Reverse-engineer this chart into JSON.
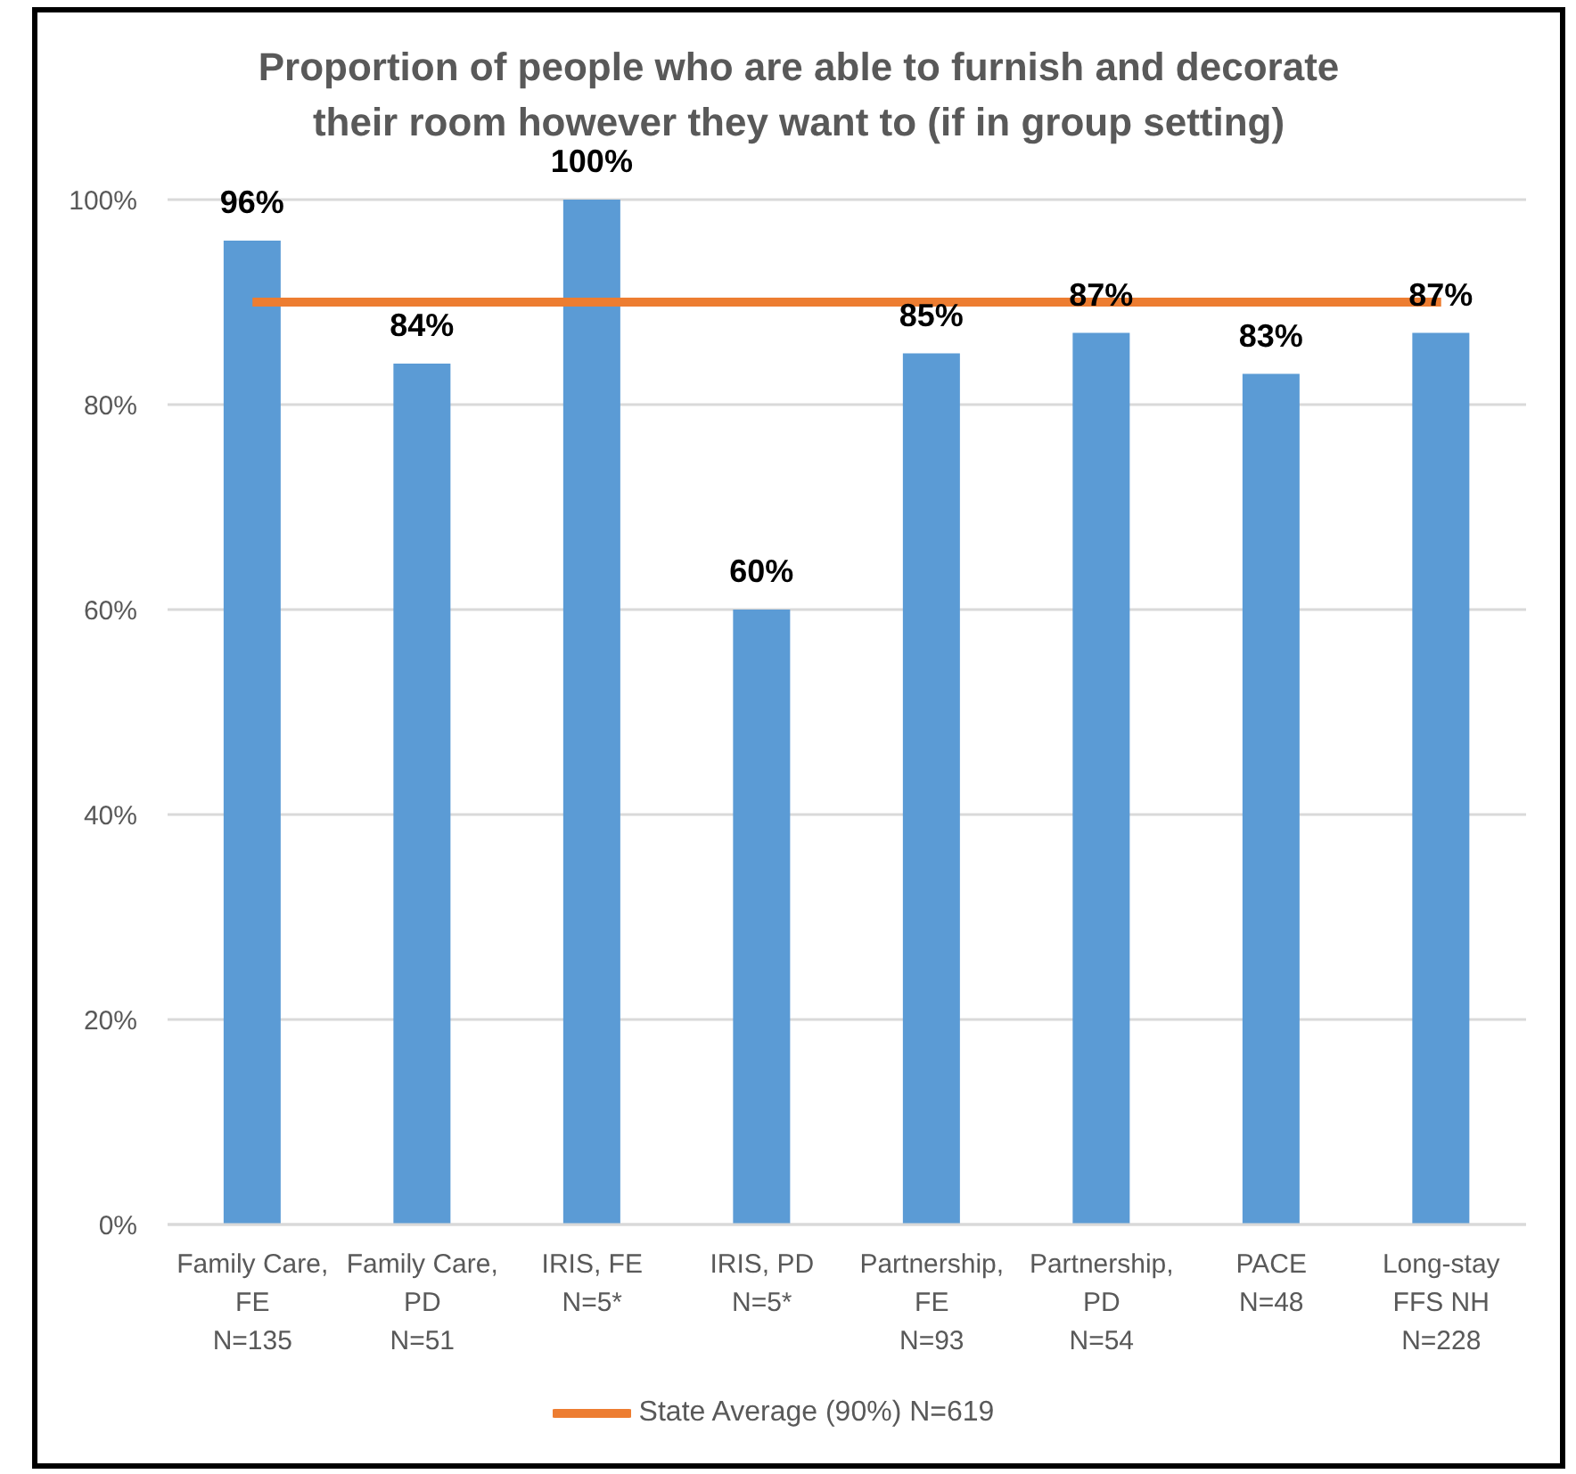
{
  "chart_data": {
    "type": "bar",
    "title": "Proportion of people who are able to furnish and decorate their room however they want to (if in group setting)",
    "categories": [
      "Family Care,\nFE\nN=135",
      "Family Care,\nPD\nN=51",
      "IRIS, FE\nN=5*",
      "IRIS, PD\nN=5*",
      "Partnership,\nFE\nN=93",
      "Partnership,\nPD\nN=54",
      "PACE\nN=48",
      "Long-stay\nFFS NH\nN=228"
    ],
    "series": [
      {
        "color": "#5b9bd5",
        "values": [
          96,
          84,
          100,
          60,
          85,
          87,
          83,
          87
        ],
        "value_labels": [
          "96%",
          "84%",
          "100%",
          "60%",
          "85%",
          "87%",
          "83%",
          "87%"
        ]
      },
      {
        "type": "line",
        "name": "State Average (90%) N=619",
        "color": "#ed7d31",
        "values": [
          90,
          90,
          90,
          90,
          90,
          90,
          90,
          90
        ],
        "marker": "none",
        "line_style": "solid"
      }
    ],
    "ylim": [
      0,
      100
    ],
    "yticks": [
      {
        "value": 0,
        "label": "0%"
      },
      {
        "value": 20,
        "label": "20%"
      },
      {
        "value": 40,
        "label": "40%"
      },
      {
        "value": 60,
        "label": "60%"
      },
      {
        "value": 80,
        "label": "80%"
      },
      {
        "value": 100,
        "label": "100%"
      }
    ],
    "grid": "y",
    "legend": "bottom"
  }
}
